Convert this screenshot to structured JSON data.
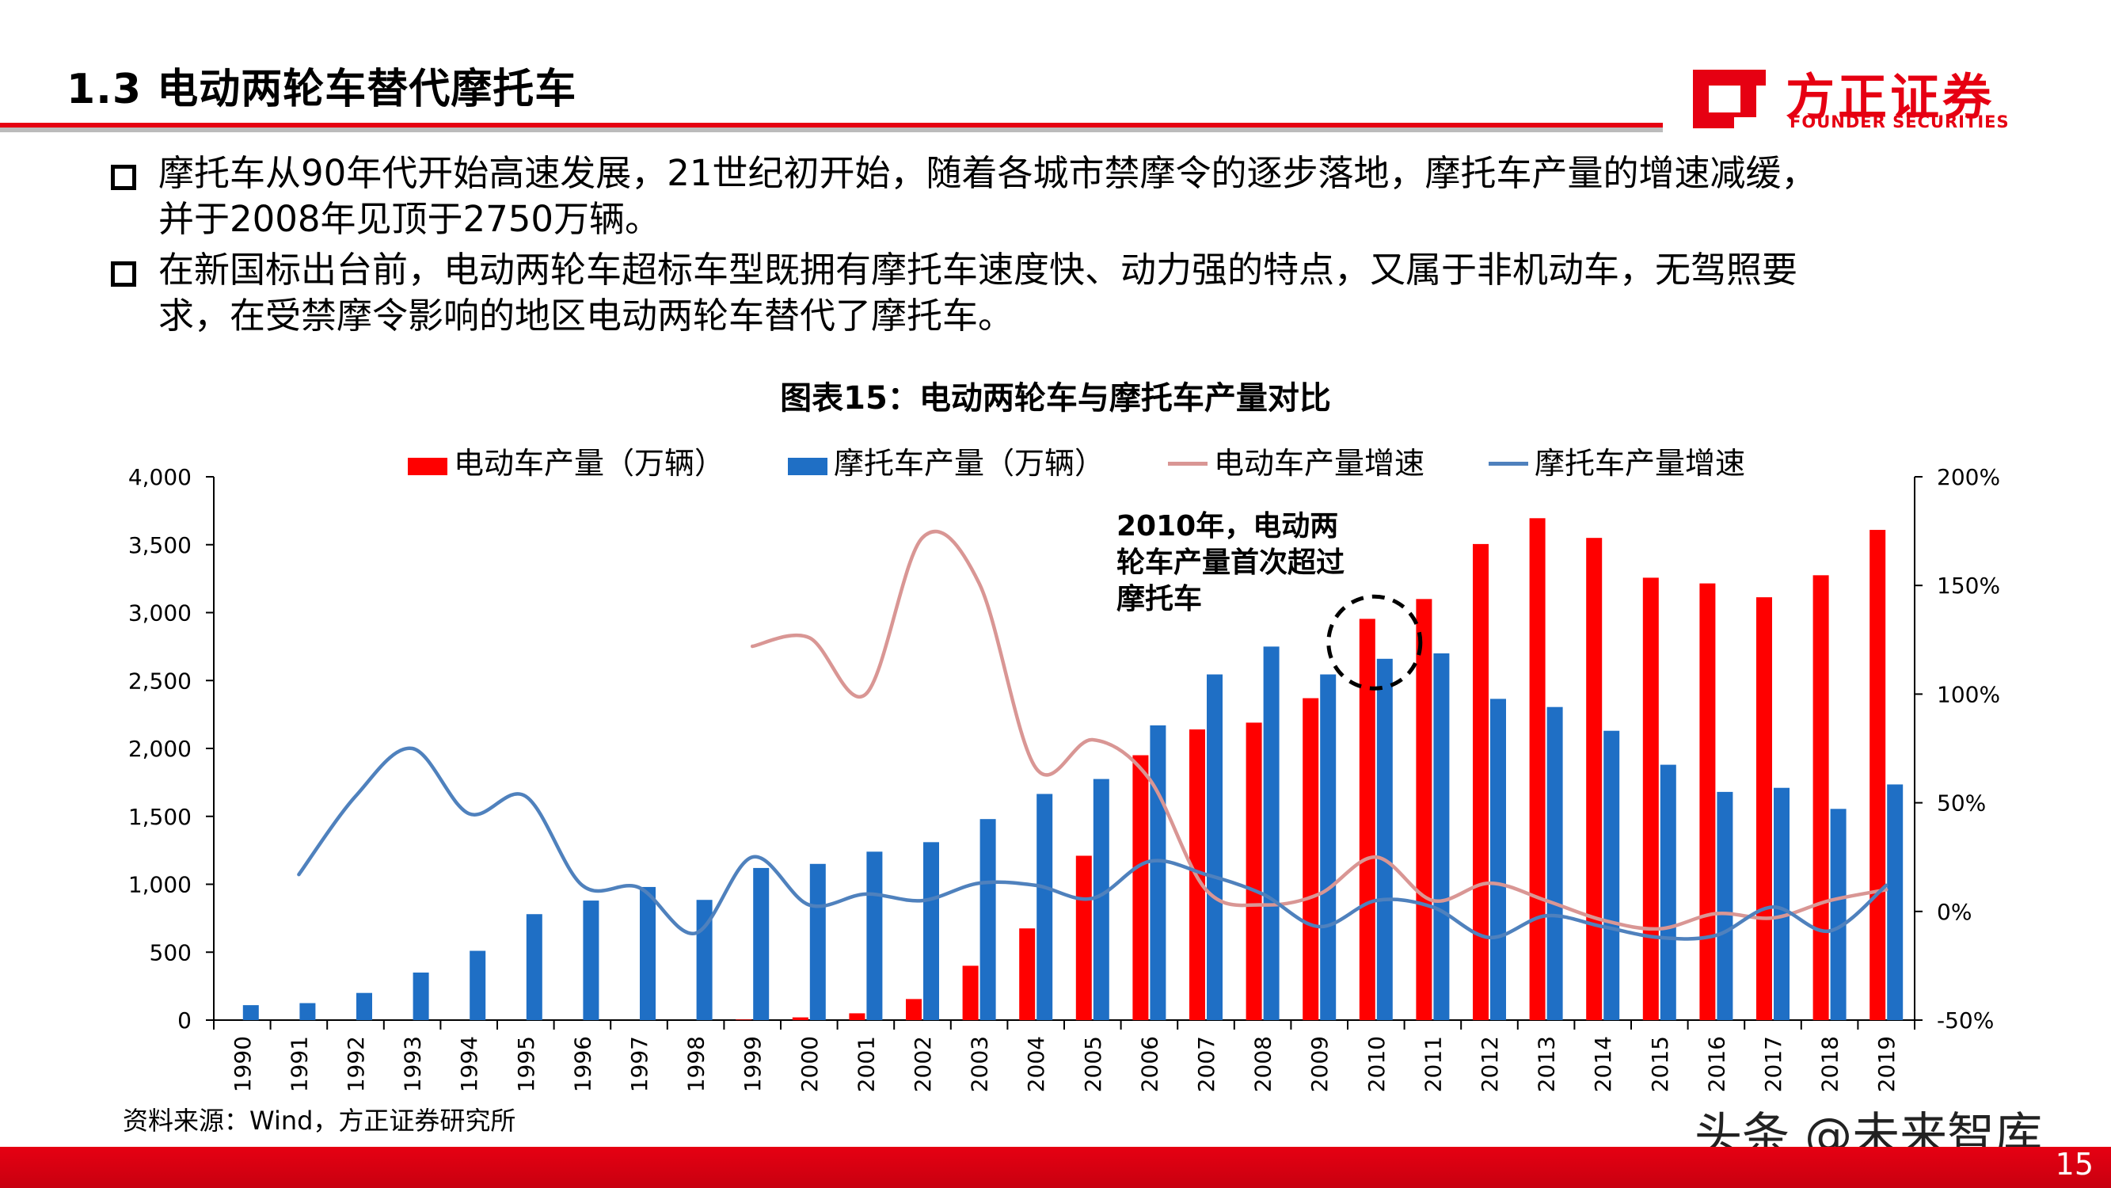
{
  "slide": {
    "title": "1.3 电动两轮车替代摩托车",
    "logo_cn": "方正证券",
    "logo_en": "FOUNDER SECURITIES",
    "page_number": "15",
    "watermark": "头条 @未来智库"
  },
  "bullets": [
    {
      "line1": "摩托车从90年代开始高速发展，21世纪初开始，随着各城市禁摩令的逐步落地，摩托车产量的增速减缓，",
      "line2": "并于2008年见顶于2750万辆。"
    },
    {
      "line1": "在新国标出台前，电动两轮车超标车型既拥有摩托车速度快、动力强的特点，又属于非机动车，无驾照要",
      "line2": "求，在受禁摩令影响的地区电动两轮车替代了摩托车。"
    }
  ],
  "chart_title": "图表15：电动两轮车与摩托车产量对比",
  "source": "资料来源：Wind，方正证券研究所",
  "colors": {
    "brand_red": "#e60012",
    "ebike_bar": "#ff0000",
    "moto_bar": "#1f6fc5",
    "ebike_line": "#d99694",
    "moto_line": "#4f81bd"
  },
  "chart_data": {
    "type": "bar",
    "categories": [
      "1990",
      "1991",
      "1992",
      "1993",
      "1994",
      "1995",
      "1996",
      "1997",
      "1998",
      "1999",
      "2000",
      "2001",
      "2002",
      "2003",
      "2004",
      "2005",
      "2006",
      "2007",
      "2008",
      "2009",
      "2010",
      "2011",
      "2012",
      "2013",
      "2014",
      "2015",
      "2016",
      "2017",
      "2018",
      "2019"
    ],
    "series": [
      {
        "name": "电动车产量（万辆）",
        "type": "bar",
        "axis": "left",
        "values": [
          null,
          null,
          null,
          null,
          null,
          null,
          null,
          null,
          null,
          4,
          20,
          50,
          155,
          400,
          675,
          1210,
          1950,
          2140,
          2190,
          2370,
          2954,
          3100,
          3505,
          3695,
          3550,
          3257,
          3215,
          3113,
          3275,
          3609
        ]
      },
      {
        "name": "摩托车产量（万辆）",
        "type": "bar",
        "axis": "left",
        "values": [
          110,
          125,
          200,
          350,
          510,
          780,
          880,
          980,
          885,
          1120,
          1150,
          1240,
          1310,
          1480,
          1665,
          1775,
          2170,
          2545,
          2750,
          2545,
          2660,
          2700,
          2365,
          2305,
          2130,
          1880,
          1680,
          1710,
          1555,
          1735
        ]
      },
      {
        "name": "电动车产量增速",
        "type": "line",
        "axis": "right",
        "values": [
          null,
          null,
          null,
          null,
          null,
          null,
          null,
          null,
          null,
          122,
          126,
          100,
          172,
          151,
          66,
          79,
          61,
          10,
          3,
          8,
          25,
          5,
          13,
          5,
          -4,
          -8,
          -1,
          -3,
          5,
          10
        ]
      },
      {
        "name": "摩托车产量增速",
        "type": "line",
        "axis": "right",
        "values": [
          null,
          17,
          53,
          75,
          45,
          53,
          12,
          11,
          -10,
          25,
          3,
          8,
          5,
          13,
          12,
          6,
          23,
          17,
          8,
          -7,
          5,
          2,
          -12,
          -2,
          -7,
          -12,
          -11,
          2,
          -9,
          12
        ]
      }
    ],
    "y_left": {
      "min": 0,
      "max": 4000,
      "ticks": [
        "0",
        "500",
        "1,000",
        "1,500",
        "2,000",
        "2,500",
        "3,000",
        "3,500",
        "4,000"
      ]
    },
    "y_right": {
      "min": -50,
      "max": 200,
      "ticks": [
        "-50%",
        "0%",
        "50%",
        "100%",
        "150%",
        "200%"
      ]
    },
    "annotation": {
      "lines": [
        "2010年，电动两",
        "轮车产量首次超过",
        "摩托车"
      ],
      "category": "2010"
    },
    "legend_position": "top"
  }
}
